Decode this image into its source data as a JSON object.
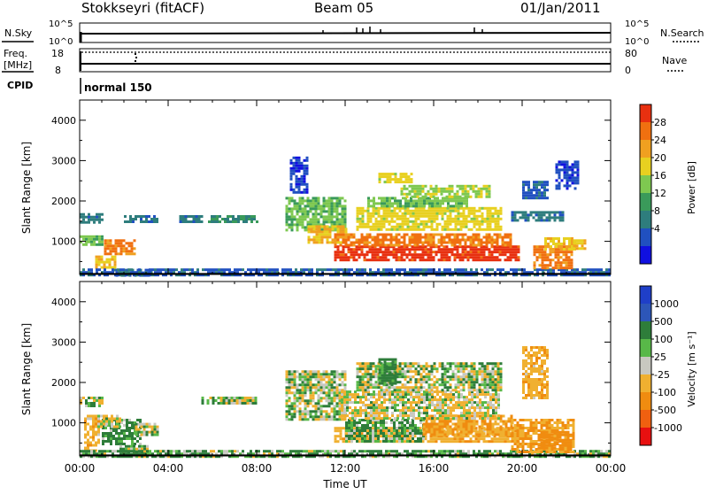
{
  "header": {
    "station": "Stokkseyri (fitACF)",
    "beam": "Beam 05",
    "date": "01/Jan/2011"
  },
  "strip_panels": {
    "nsky_label": "N.Sky",
    "nsky_ticks": [
      "10^5",
      "10^0"
    ],
    "nsearch_label": "N.Search",
    "nsearch_ticks": [
      "10^5",
      "10^0"
    ],
    "freq_label_1": "Freq.",
    "freq_label_2": "[MHz]",
    "freq_ticks": [
      "18",
      "8"
    ],
    "nave_label": "Nave",
    "nave_ticks": [
      "80",
      "0"
    ],
    "cpid_label": "CPID",
    "cpid_value": "normal 150"
  },
  "colors": {
    "power": [
      "#1010e0",
      "#2050c0",
      "#2e7d7d",
      "#3a9a5a",
      "#7ec850",
      "#e8d020",
      "#f0a020",
      "#f07010",
      "#e83010"
    ],
    "velocity": [
      "#1f3fc8",
      "#2d56b8",
      "#2e7d3a",
      "#58b848",
      "#c8c8c0",
      "#f0b030",
      "#f08c10",
      "#f06010",
      "#e81010"
    ],
    "track": "#000000"
  },
  "chart_data": [
    {
      "type": "heatmap",
      "name": "power",
      "xlabel": "",
      "ylabel": "Slant Range [km]",
      "x_ticks": [
        "00:00",
        "04:00",
        "08:00",
        "12:00",
        "16:00",
        "20:00",
        "00:00"
      ],
      "y_ticks": [
        1000,
        2000,
        3000,
        4000
      ],
      "xlim_hours": [
        0,
        24
      ],
      "ylim_km": [
        180,
        4500
      ],
      "colorbar": {
        "label": "Power [dB]",
        "ticks": [
          "28",
          "24",
          "20",
          "16",
          "12",
          "8",
          "4"
        ],
        "range": [
          0,
          30
        ]
      },
      "regions": [
        {
          "t": [
            0.0,
            1.0
          ],
          "r": [
            1500,
            1700
          ],
          "value": 8
        },
        {
          "t": [
            0.0,
            1.0
          ],
          "r": [
            900,
            1150
          ],
          "value": 14
        },
        {
          "t": [
            0.7,
            1.6
          ],
          "r": [
            350,
            650
          ],
          "value": 20
        },
        {
          "t": [
            1.1,
            2.5
          ],
          "r": [
            700,
            1050
          ],
          "value": 24
        },
        {
          "t": [
            1.5,
            3.2
          ],
          "r": [
            180,
            320
          ],
          "value": 6
        },
        {
          "t": [
            2.0,
            3.5
          ],
          "r": [
            1500,
            1650
          ],
          "value": 8
        },
        {
          "t": [
            4.5,
            5.5
          ],
          "r": [
            1500,
            1650
          ],
          "value": 8
        },
        {
          "t": [
            5.8,
            8.0
          ],
          "r": [
            1500,
            1650
          ],
          "value": 10
        },
        {
          "t": [
            0.0,
            24.0
          ],
          "r": [
            180,
            330
          ],
          "value": 6
        },
        {
          "t": [
            9.3,
            12.0
          ],
          "r": [
            1300,
            2100
          ],
          "value": 14
        },
        {
          "t": [
            9.5,
            10.3
          ],
          "r": [
            2200,
            3100
          ],
          "value": 4
        },
        {
          "t": [
            10.3,
            12.0
          ],
          "r": [
            1000,
            1400
          ],
          "value": 20
        },
        {
          "t": [
            11.5,
            19.8
          ],
          "r": [
            550,
            900
          ],
          "value": 28
        },
        {
          "t": [
            11.5,
            19.5
          ],
          "r": [
            900,
            1200
          ],
          "value": 24
        },
        {
          "t": [
            12.5,
            19.0
          ],
          "r": [
            1300,
            1850
          ],
          "value": 18
        },
        {
          "t": [
            13.0,
            17.5
          ],
          "r": [
            1850,
            2100
          ],
          "value": 14
        },
        {
          "t": [
            14.5,
            18.5
          ],
          "r": [
            2100,
            2400
          ],
          "value": 16
        },
        {
          "t": [
            13.5,
            15.0
          ],
          "r": [
            2500,
            2700
          ],
          "value": 18
        },
        {
          "t": [
            19.5,
            21.8
          ],
          "r": [
            1500,
            1750
          ],
          "value": 8
        },
        {
          "t": [
            20.5,
            22.3
          ],
          "r": [
            350,
            900
          ],
          "value": 24
        },
        {
          "t": [
            21.0,
            22.4
          ],
          "r": [
            800,
            1100
          ],
          "value": 20
        },
        {
          "t": [
            22.3,
            22.9
          ],
          "r": [
            850,
            1050
          ],
          "value": 20
        },
        {
          "t": [
            20.0,
            21.2
          ],
          "r": [
            2050,
            2500
          ],
          "value": 6
        },
        {
          "t": [
            21.5,
            22.5
          ],
          "r": [
            2300,
            3000
          ],
          "value": 4
        }
      ]
    },
    {
      "type": "heatmap",
      "name": "velocity",
      "xlabel": "Time UT",
      "ylabel": "Slant Range [km]",
      "x_ticks": [
        "00:00",
        "04:00",
        "08:00",
        "12:00",
        "16:00",
        "20:00",
        "00:00"
      ],
      "y_ticks": [
        1000,
        2000,
        3000,
        4000
      ],
      "xlim_hours": [
        0,
        24
      ],
      "ylim_km": [
        180,
        4500
      ],
      "colorbar": {
        "label": "Velocity [m s⁻¹]",
        "ticks": [
          "1000",
          "500",
          "100",
          "25",
          "-25",
          "-100",
          "-500",
          "-1000"
        ],
        "range": [
          -1200,
          1200
        ]
      },
      "regions": [
        {
          "t": [
            0.0,
            1.0
          ],
          "r": [
            1450,
            1650
          ],
          "value": 0
        },
        {
          "t": [
            0.2,
            0.9
          ],
          "r": [
            300,
            1200
          ],
          "value": -200
        },
        {
          "t": [
            1.0,
            2.8
          ],
          "r": [
            500,
            1100
          ],
          "value": 120
        },
        {
          "t": [
            0.8,
            1.8
          ],
          "r": [
            900,
            1200
          ],
          "value": -80
        },
        {
          "t": [
            1.8,
            3.2
          ],
          "r": [
            200,
            450
          ],
          "value": 50
        },
        {
          "t": [
            2.5,
            3.5
          ],
          "r": [
            700,
            1000
          ],
          "value": 0
        },
        {
          "t": [
            0.0,
            24.0
          ],
          "r": [
            180,
            330
          ],
          "value": 60
        },
        {
          "t": [
            5.5,
            8.0
          ],
          "r": [
            1500,
            1650
          ],
          "value": 0
        },
        {
          "t": [
            9.3,
            12.0
          ],
          "r": [
            1100,
            2300
          ],
          "value": 0
        },
        {
          "t": [
            11.5,
            19.8
          ],
          "r": [
            550,
            900
          ],
          "value": -200
        },
        {
          "t": [
            12.0,
            15.5
          ],
          "r": [
            550,
            1100
          ],
          "value": 80
        },
        {
          "t": [
            15.5,
            19.5
          ],
          "r": [
            700,
            1200
          ],
          "value": -300
        },
        {
          "t": [
            11.8,
            19.0
          ],
          "r": [
            1100,
            1800
          ],
          "value": -60
        },
        {
          "t": [
            12.5,
            19.0
          ],
          "r": [
            1800,
            2500
          ],
          "value": 0
        },
        {
          "t": [
            13.5,
            14.3
          ],
          "r": [
            2000,
            2600
          ],
          "value": 150
        },
        {
          "t": [
            19.5,
            22.3
          ],
          "r": [
            300,
            1100
          ],
          "value": -300
        },
        {
          "t": [
            20.7,
            22.2
          ],
          "r": [
            350,
            800
          ],
          "value": -500
        },
        {
          "t": [
            20.0,
            21.2
          ],
          "r": [
            1600,
            2900
          ],
          "value": -200
        }
      ]
    }
  ]
}
